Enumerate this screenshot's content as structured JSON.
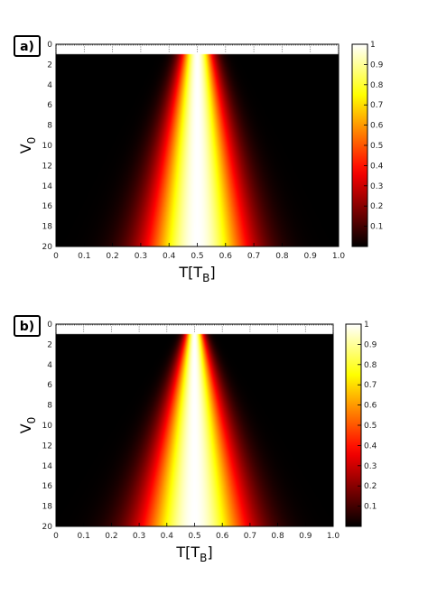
{
  "colormap": "hot",
  "colors": {
    "black": "#000000",
    "dark_red": "#8a0000",
    "red": "#e61a00",
    "orange": "#ff8c00",
    "yellow": "#ffff40",
    "white": "#ffffff"
  },
  "chart_data": [
    {
      "type": "heatmap",
      "panel_label": "a)",
      "xlabel": "T[T",
      "xlabel_sub": "B",
      "xlabel_close": "]",
      "ylabel": "V",
      "ylabel_sub": "0",
      "xlim": [
        0,
        1
      ],
      "ylim": [
        0,
        20
      ],
      "y_direction": "down",
      "xticks": [
        "0",
        "0.1",
        "0.2",
        "0.3",
        "0.4",
        "0.5",
        "0.6",
        "0.7",
        "0.8",
        "0.9",
        "1.0"
      ],
      "yticks": [
        "0",
        "2",
        "4",
        "6",
        "8",
        "10",
        "12",
        "14",
        "16",
        "18",
        "20"
      ],
      "data_y_start": 1,
      "colorbar": {
        "range": [
          0,
          1
        ],
        "ticks": [
          "1",
          "0.9",
          "0.8",
          "0.7",
          "0.6",
          "0.5",
          "0.4",
          "0.3",
          "0.2",
          "0.1"
        ],
        "tick_values": [
          1,
          0.9,
          0.8,
          0.7,
          0.6,
          0.5,
          0.4,
          0.3,
          0.2,
          0.1
        ]
      },
      "model": {
        "a": 0.05,
        "b": 0.12
      },
      "grid": false
    },
    {
      "type": "heatmap",
      "panel_label": "b)",
      "xlabel": "T[T",
      "xlabel_sub": "B",
      "xlabel_close": "]",
      "ylabel": "V",
      "ylabel_sub": "0",
      "xlim": [
        0,
        1
      ],
      "ylim": [
        0,
        20
      ],
      "y_direction": "down",
      "xticks": [
        "0",
        "0.1",
        "0.2",
        "0.3",
        "0.4",
        "0.5",
        "0.6",
        "0.7",
        "0.8",
        "0.9",
        "1.0"
      ],
      "yticks": [
        "0",
        "2",
        "4",
        "6",
        "8",
        "10",
        "12",
        "14",
        "16",
        "18",
        "20"
      ],
      "data_y_start": 1,
      "colorbar": {
        "range": [
          0,
          1
        ],
        "ticks": [
          "1",
          "0.9",
          "0.8",
          "0.7",
          "0.6",
          "0.5",
          "0.4",
          "0.3",
          "0.2",
          "0.1"
        ],
        "tick_values": [
          1,
          0.9,
          0.8,
          0.7,
          0.6,
          0.5,
          0.4,
          0.3,
          0.2,
          0.1
        ]
      },
      "model": {
        "a": 0.03,
        "b": 0.15
      },
      "grid": false
    }
  ]
}
